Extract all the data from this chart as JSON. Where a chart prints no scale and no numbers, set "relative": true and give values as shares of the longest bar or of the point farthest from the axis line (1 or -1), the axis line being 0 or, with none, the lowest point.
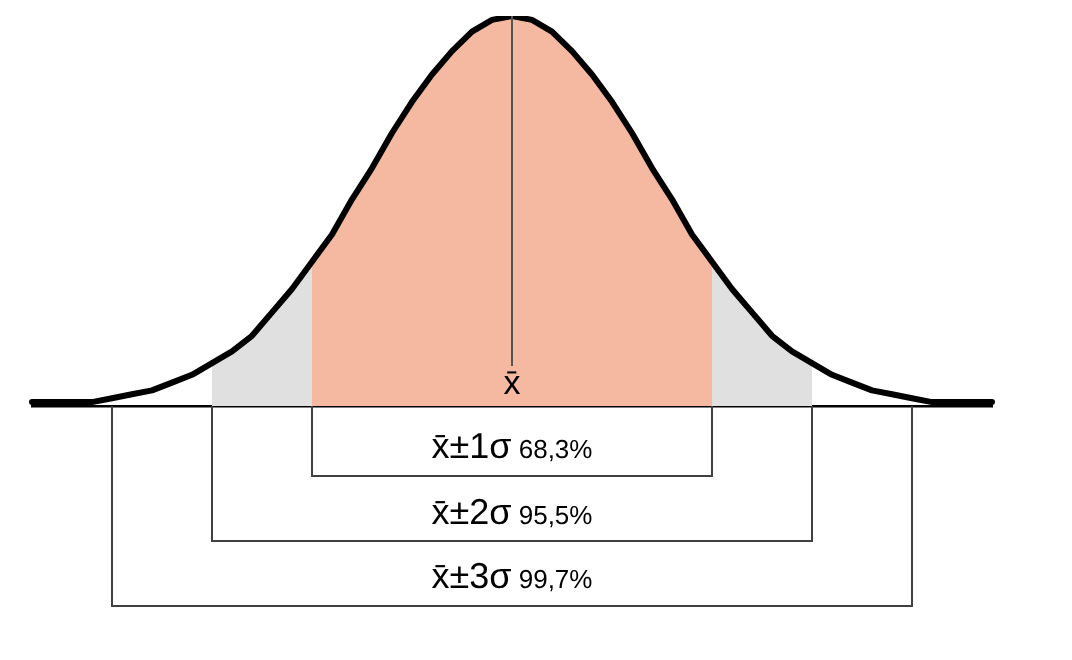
{
  "chart_data": {
    "type": "line",
    "relative": true,
    "categories": [
      null,
      null,
      null,
      null,
      null,
      null,
      null,
      null,
      null,
      null,
      null,
      null,
      null,
      null,
      null,
      null,
      null,
      null,
      null,
      null,
      null,
      null,
      null,
      null,
      null,
      null,
      null,
      null,
      null,
      null,
      null,
      null,
      null,
      null,
      null,
      null,
      null,
      null,
      null,
      null,
      null,
      null,
      null,
      null,
      null,
      null,
      null,
      null,
      null
    ],
    "series": [
      {
        "color": "#000000",
        "values": [
          0.01,
          0.01,
          0.01,
          0.01,
          0.02,
          0.03,
          0.04,
          0.06,
          0.08,
          0.11,
          0.14,
          0.18,
          0.24,
          0.3,
          0.37,
          0.44,
          0.53,
          0.61,
          0.7,
          0.78,
          0.85,
          0.91,
          0.96,
          0.99,
          1,
          0.99,
          0.96,
          0.91,
          0.85,
          0.78,
          0.7,
          0.61,
          0.53,
          0.44,
          0.37,
          0.3,
          0.24,
          0.18,
          0.14,
          0.11,
          0.08,
          0.06,
          0.04,
          0.03,
          0.02,
          0.01,
          0.01,
          0.01,
          0.01
        ]
      },
      {
        "type": "area",
        "color": "#f4b9a0",
        "values": [
          null,
          null,
          null,
          null,
          null,
          null,
          null,
          null,
          null,
          null,
          null,
          null,
          null,
          null,
          0.37,
          0.44,
          0.53,
          0.61,
          0.7,
          0.78,
          0.85,
          0.91,
          0.96,
          0.99,
          1,
          0.99,
          0.96,
          0.91,
          0.85,
          0.78,
          0.7,
          0.61,
          0.53,
          0.44,
          0.37,
          null,
          null,
          null,
          null,
          null,
          null,
          null,
          null,
          null,
          null,
          null,
          null,
          null,
          null
        ]
      },
      {
        "type": "area",
        "color": "#e0e0e0",
        "values": [
          null,
          null,
          null,
          null,
          null,
          null,
          null,
          null,
          null,
          0.11,
          0.14,
          0.18,
          0.24,
          0.3,
          0.37,
          null,
          null,
          null,
          null,
          null,
          null,
          null,
          null,
          null,
          null,
          null,
          null,
          null,
          null,
          null,
          null,
          null,
          null,
          null,
          0.37,
          0.3,
          0.24,
          0.18,
          0.14,
          0.11,
          null,
          null,
          null,
          null,
          null,
          null,
          null,
          null,
          null
        ]
      }
    ],
    "annotations": [
      "x̄",
      "x̄±1σ 68,3%",
      "x̄±2σ 95,5%",
      "x̄±3σ 99,7%"
    ],
    "marker": "none",
    "line_style": "solid",
    "grid": false,
    "legend": false
  }
}
